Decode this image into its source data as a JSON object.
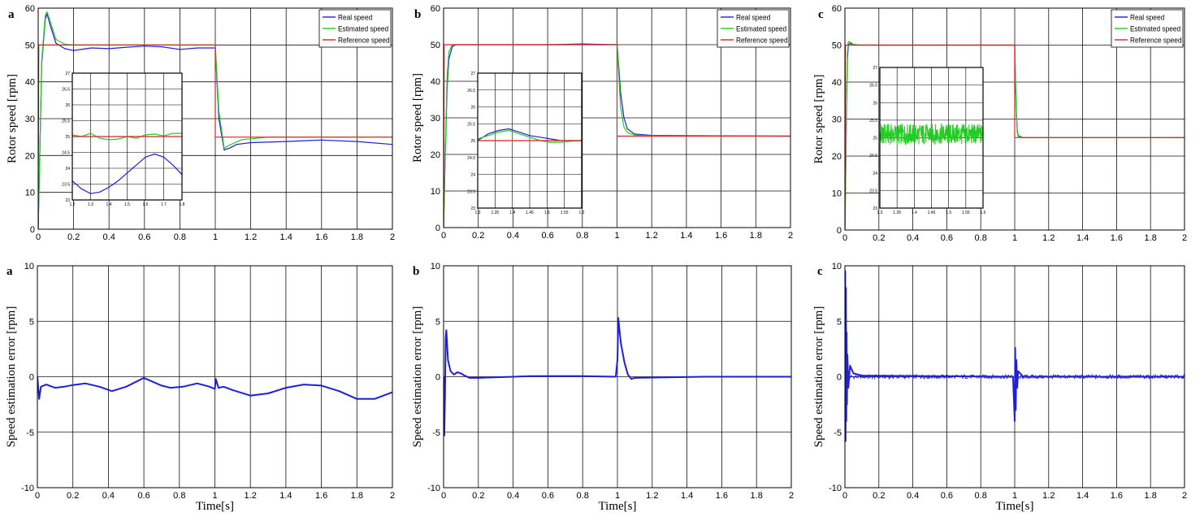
{
  "colors": {
    "real": "#1f1fd6",
    "estimated": "#22cc22",
    "reference": "#dd2222",
    "grid": "#000000"
  },
  "chart_data": [
    {
      "type": "line",
      "panel_letter": "a",
      "ylabel": "Rotor speed [rpm]",
      "xlabel": "",
      "xlim": [
        0,
        2
      ],
      "ylim": [
        0,
        60
      ],
      "xticks": [
        "0",
        "0.2",
        "0.4",
        "0.6",
        "0.8",
        "1",
        "1.2",
        "1.4",
        "1.6",
        "1.8",
        "2"
      ],
      "yticks": [
        "0",
        "10",
        "20",
        "30",
        "40",
        "50",
        "60"
      ],
      "grid": true,
      "legend": "top-right",
      "series": [
        {
          "name": "Real speed",
          "color_key": "real",
          "x": [
            0,
            0.02,
            0.04,
            0.05,
            0.07,
            0.1,
            0.15,
            0.2,
            0.3,
            0.4,
            0.5,
            0.6,
            0.7,
            0.8,
            0.9,
            1.0,
            1.02,
            1.05,
            1.08,
            1.12,
            1.2,
            1.4,
            1.6,
            1.8,
            2.0
          ],
          "y": [
            0,
            45,
            57,
            58.5,
            55,
            50.5,
            49,
            48.5,
            49.2,
            49,
            49.4,
            49.7,
            49.5,
            48.8,
            49.2,
            49.2,
            30,
            21.5,
            22,
            23,
            23.5,
            23.8,
            24.2,
            23.8,
            23
          ]
        },
        {
          "name": "Estimated speed",
          "color_key": "estimated",
          "x": [
            0,
            0.02,
            0.04,
            0.05,
            0.07,
            0.1,
            0.15,
            0.2,
            0.4,
            0.6,
            0.8,
            1.0,
            1.02,
            1.05,
            1.08,
            1.15,
            1.3,
            1.6,
            2.0
          ],
          "y": [
            0,
            46,
            58,
            59,
            56,
            51.5,
            50.2,
            50,
            50,
            50,
            50,
            50,
            32,
            22,
            22.8,
            24.3,
            25,
            25,
            25
          ]
        },
        {
          "name": "Reference speed",
          "color_key": "reference",
          "x": [
            0,
            0.003,
            1.0,
            1.0,
            2.0
          ],
          "y": [
            0,
            50,
            50,
            25,
            25
          ]
        }
      ],
      "inset": {
        "xlim": [
          1.2,
          1.8
        ],
        "ylim": [
          23,
          27
        ],
        "xticks": [
          "1.2",
          "1.3",
          "1.4",
          "1.5",
          "1.6",
          "1.7",
          "1.8"
        ],
        "yticks": [
          "23",
          "23.5",
          "24",
          "24.5",
          "25",
          "25.5",
          "26",
          "26.5",
          "27"
        ],
        "series": [
          {
            "color_key": "real",
            "x": [
              1.2,
              1.25,
              1.3,
              1.35,
              1.4,
              1.45,
              1.5,
              1.55,
              1.6,
              1.65,
              1.7,
              1.75,
              1.8
            ],
            "y": [
              23.6,
              23.35,
              23.2,
              23.25,
              23.4,
              23.6,
              23.85,
              24.1,
              24.35,
              24.45,
              24.35,
              24.1,
              23.8
            ]
          },
          {
            "color_key": "estimated",
            "x": [
              1.2,
              1.25,
              1.3,
              1.35,
              1.4,
              1.45,
              1.5,
              1.55,
              1.6,
              1.65,
              1.7,
              1.75,
              1.8
            ],
            "y": [
              25.05,
              25.0,
              25.1,
              24.95,
              24.9,
              24.92,
              25.0,
              24.95,
              25.05,
              25.08,
              25.02,
              25.1,
              25.1
            ]
          },
          {
            "color_key": "reference",
            "x": [
              1.2,
              1.8
            ],
            "y": [
              25,
              25
            ]
          }
        ]
      }
    },
    {
      "type": "line",
      "panel_letter": "b",
      "ylabel": "Rotor speed [rpm]",
      "xlabel": "",
      "xlim": [
        0,
        2
      ],
      "ylim": [
        0,
        60
      ],
      "xticks": [
        "0",
        "0.2",
        "0.4",
        "0.6",
        "0.8",
        "1",
        "1.2",
        "1.4",
        "1.6",
        "1.8",
        "2"
      ],
      "yticks": [
        "0",
        "10",
        "20",
        "30",
        "40",
        "50",
        "60"
      ],
      "grid": true,
      "legend": "top-right",
      "series": [
        {
          "name": "Real speed",
          "color_key": "real",
          "x": [
            0,
            0.01,
            0.02,
            0.03,
            0.05,
            0.07,
            0.1,
            0.3,
            0.6,
            0.8,
            1.0,
            1.01,
            1.02,
            1.04,
            1.06,
            1.1,
            1.2,
            1.6,
            2.0
          ],
          "y": [
            0,
            20,
            38,
            46,
            49.5,
            50,
            50,
            50,
            50,
            50.2,
            50,
            44,
            37,
            30,
            27,
            25.6,
            25.2,
            25.1,
            25
          ]
        },
        {
          "name": "Estimated speed",
          "color_key": "estimated",
          "x": [
            0,
            0.01,
            0.02,
            0.03,
            0.05,
            0.07,
            0.1,
            0.3,
            0.6,
            0.8,
            1.0,
            1.01,
            1.02,
            1.04,
            1.06,
            1.1,
            1.2,
            1.6,
            2.0
          ],
          "y": [
            0,
            22,
            41,
            48,
            50,
            50,
            50,
            50,
            50,
            50,
            50,
            42,
            33,
            27.5,
            26,
            25.3,
            25.1,
            25.05,
            25
          ]
        },
        {
          "name": "Reference speed",
          "color_key": "reference",
          "x": [
            0,
            0.003,
            1.0,
            1.0,
            2.0
          ],
          "y": [
            0,
            50,
            50,
            25,
            25
          ]
        }
      ],
      "inset": {
        "xlim": [
          1.3,
          1.6
        ],
        "ylim": [
          23,
          27
        ],
        "xticks": [
          "1.3",
          "1.35",
          "1.4",
          "1.45",
          "1.5",
          "1.55",
          "1.6"
        ],
        "yticks": [
          "23",
          "23.5",
          "24",
          "24.5",
          "25",
          "25.5",
          "26",
          "26.5",
          "27"
        ],
        "series": [
          {
            "color_key": "real",
            "x": [
              1.3,
              1.33,
              1.36,
              1.39,
              1.42,
              1.45,
              1.48,
              1.51,
              1.54,
              1.57,
              1.6
            ],
            "y": [
              25.0,
              25.2,
              25.3,
              25.35,
              25.25,
              25.15,
              25.1,
              25.05,
              25.0,
              25.0,
              25.0
            ]
          },
          {
            "color_key": "estimated",
            "x": [
              1.3,
              1.33,
              1.36,
              1.39,
              1.42,
              1.45,
              1.48,
              1.51,
              1.54,
              1.57,
              1.6
            ],
            "y": [
              25.05,
              25.15,
              25.25,
              25.3,
              25.2,
              25.1,
              25.0,
              24.95,
              24.95,
              24.98,
              25.0
            ]
          },
          {
            "color_key": "reference",
            "x": [
              1.3,
              1.6
            ],
            "y": [
              25,
              25
            ]
          }
        ]
      }
    },
    {
      "type": "line",
      "panel_letter": "c",
      "ylabel": "Rotor speed [rpm]",
      "xlabel": "",
      "xlim": [
        0,
        2
      ],
      "ylim": [
        0,
        60
      ],
      "xticks": [
        "0",
        "0.2",
        "0.4",
        "0.6",
        "0.8",
        "1",
        "1.2",
        "1.4",
        "1.6",
        "1.8",
        "2"
      ],
      "yticks": [
        "0",
        "10",
        "20",
        "30",
        "40",
        "50",
        "60"
      ],
      "grid": true,
      "legend": "top-right",
      "series": [
        {
          "name": "Real speed",
          "color_key": "real",
          "x": [
            0,
            0.005,
            0.01,
            0.015,
            0.02,
            0.03,
            0.05,
            0.1,
            0.5,
            1.0,
            1.005,
            1.01,
            1.015,
            1.02,
            1.05,
            1.5,
            2.0
          ],
          "y": [
            0,
            15,
            35,
            46,
            50,
            50.5,
            50,
            50,
            50,
            50,
            40,
            32,
            27,
            25.5,
            25,
            25,
            25
          ]
        },
        {
          "name": "Estimated speed",
          "color_key": "estimated",
          "x": [
            0,
            0.005,
            0.01,
            0.015,
            0.02,
            0.03,
            0.05,
            0.1,
            0.5,
            1.0,
            1.005,
            1.01,
            1.015,
            1.02,
            1.05,
            1.5,
            2.0
          ],
          "y": [
            0,
            17,
            38,
            48,
            51,
            50.8,
            50.2,
            50,
            50,
            50,
            39,
            31,
            26.5,
            25.3,
            25,
            25,
            25
          ]
        },
        {
          "name": "Reference speed",
          "color_key": "reference",
          "x": [
            0,
            0.003,
            1.0,
            1.0,
            2.0
          ],
          "y": [
            0,
            50,
            50,
            25,
            25
          ]
        }
      ],
      "inset": {
        "xlim": [
          1.3,
          1.6
        ],
        "ylim": [
          23,
          27
        ],
        "xticks": [
          "1.3",
          "1.35",
          "1.4",
          "1.45",
          "1.5",
          "1.55",
          "1.6"
        ],
        "yticks": [
          "23",
          "23.5",
          "24",
          "24.5",
          "25",
          "25.5",
          "26",
          "26.5",
          "27"
        ],
        "band": {
          "color_key": "estimated",
          "center": 25.1,
          "halfwidth": 0.3
        },
        "series": [
          {
            "color_key": "real",
            "x": [
              1.3,
              1.6
            ],
            "y": [
              25.0,
              25.0
            ]
          },
          {
            "color_key": "reference",
            "x": [
              1.3,
              1.6
            ],
            "y": [
              25,
              25
            ]
          }
        ]
      }
    },
    {
      "type": "line",
      "panel_letter": "a",
      "ylabel": "Speed estimation error [rpm]",
      "xlabel": "Time[s]",
      "xlim": [
        0,
        2
      ],
      "ylim": [
        -10,
        10
      ],
      "xticks": [
        "0",
        "0.2",
        "0.4",
        "0.6",
        "0.8",
        "1",
        "1.2",
        "1.4",
        "1.6",
        "1.8",
        "2"
      ],
      "yticks": [
        "-10",
        "-5",
        "0",
        "5",
        "10"
      ],
      "grid": true,
      "series": [
        {
          "color_key": "real",
          "x": [
            0,
            0.01,
            0.02,
            0.05,
            0.1,
            0.15,
            0.2,
            0.27,
            0.35,
            0.42,
            0.5,
            0.6,
            0.7,
            0.75,
            0.82,
            0.9,
            0.97,
            1.0,
            1.005,
            1.02,
            1.05,
            1.1,
            1.2,
            1.3,
            1.4,
            1.5,
            1.6,
            1.7,
            1.8,
            1.9,
            2.0
          ],
          "y": [
            0,
            -2,
            -0.9,
            -0.7,
            -1.0,
            -0.9,
            -0.75,
            -0.6,
            -0.9,
            -1.3,
            -0.9,
            -0.1,
            -0.8,
            -1.0,
            -0.9,
            -0.6,
            -0.9,
            -1.1,
            -0.2,
            -1.0,
            -0.9,
            -1.2,
            -1.7,
            -1.5,
            -1.0,
            -0.7,
            -0.8,
            -1.3,
            -2.0,
            -2.0,
            -1.4
          ]
        }
      ]
    },
    {
      "type": "line",
      "panel_letter": "b",
      "ylabel": "Speed estimation error [rpm]",
      "xlabel": "Time[s]",
      "xlim": [
        0,
        2
      ],
      "ylim": [
        -10,
        10
      ],
      "xticks": [
        "0",
        "0.2",
        "0.4",
        "0.6",
        "0.8",
        "1",
        "1.2",
        "1.4",
        "1.6",
        "1.8",
        "2"
      ],
      "yticks": [
        "-10",
        "-5",
        "0",
        "5",
        "10"
      ],
      "grid": true,
      "series": [
        {
          "color_key": "real",
          "x": [
            0,
            0.004,
            0.008,
            0.012,
            0.016,
            0.025,
            0.04,
            0.06,
            0.08,
            0.1,
            0.12,
            0.15,
            0.2,
            0.5,
            0.8,
            0.99,
            1.0,
            1.005,
            1.01,
            1.02,
            1.04,
            1.06,
            1.08,
            1.1,
            1.5,
            2.0
          ],
          "y": [
            0,
            -5.3,
            -2,
            3.5,
            4.2,
            1.5,
            0.5,
            0.2,
            0.4,
            0.3,
            0.1,
            -0.1,
            -0.1,
            0.05,
            0.05,
            0,
            1.5,
            5.3,
            4.5,
            3,
            1.3,
            0.2,
            -0.2,
            -0.1,
            0,
            0
          ]
        }
      ]
    },
    {
      "type": "line",
      "panel_letter": "c",
      "ylabel": "Speed estimation error [rpm]",
      "xlabel": "Time[s]",
      "xlim": [
        0,
        2
      ],
      "ylim": [
        -10,
        10
      ],
      "xticks": [
        "0",
        "0.2",
        "0.4",
        "0.6",
        "0.8",
        "1",
        "1.2",
        "1.4",
        "1.6",
        "1.8",
        "2"
      ],
      "yticks": [
        "-10",
        "-5",
        "0",
        "5",
        "10"
      ],
      "grid": true,
      "series": [
        {
          "color_key": "real",
          "x": [
            0,
            0.002,
            0.004,
            0.006,
            0.008,
            0.01,
            0.012,
            0.015,
            0.02,
            0.03,
            0.05,
            0.1,
            0.5,
            0.99,
            1.0,
            1.003,
            1.006,
            1.01,
            1.015,
            1.02,
            1.05,
            1.5,
            2.0
          ],
          "y": [
            0,
            9.5,
            -5.8,
            8,
            -4,
            4,
            -2.5,
            2,
            -1,
            1,
            0.3,
            0.1,
            0.05,
            0,
            -4,
            2.6,
            -3,
            1.5,
            -1,
            0.5,
            0,
            0,
            0
          ]
        }
      ],
      "noise": {
        "color_key": "real",
        "halfwidth": 0.18
      }
    }
  ]
}
